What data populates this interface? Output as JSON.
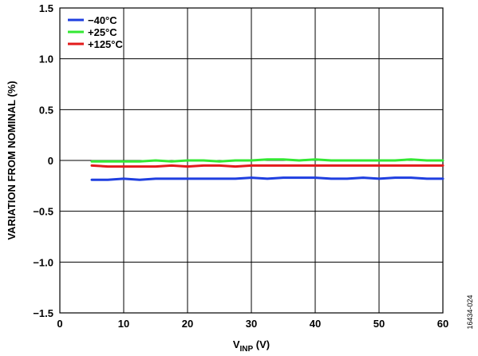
{
  "figure_id": "16434-024",
  "chart_data": {
    "type": "line",
    "title": "",
    "xlabel_main": "V",
    "xlabel_sub": "INP",
    "xlabel_suffix": " (V)",
    "ylabel": "VARIATION FROM NOMINAL (%)",
    "xlim": [
      0,
      60
    ],
    "ylim": [
      -1.5,
      1.5
    ],
    "x_ticks": [
      0,
      10,
      20,
      30,
      40,
      50,
      60
    ],
    "x_tick_labels": [
      "0",
      "10",
      "20",
      "30",
      "40",
      "50",
      "60"
    ],
    "y_ticks": [
      -1.5,
      -1.0,
      -0.5,
      0,
      0.5,
      1.0,
      1.5
    ],
    "y_tick_labels": [
      "−1.5",
      "−1.0",
      "−0.5",
      "0",
      "0.5",
      "1.0",
      "1.5"
    ],
    "grid": true,
    "legend_position": "top-left",
    "series": [
      {
        "name": "−40°C",
        "color": "#1f3fe0",
        "x": [
          5,
          7.5,
          10,
          12.5,
          15,
          17.5,
          20,
          22.5,
          25,
          27.5,
          30,
          32.5,
          35,
          37.5,
          40,
          42.5,
          45,
          47.5,
          50,
          52.5,
          55,
          57.5,
          60
        ],
        "y": [
          -0.19,
          -0.19,
          -0.18,
          -0.19,
          -0.18,
          -0.18,
          -0.18,
          -0.18,
          -0.18,
          -0.18,
          -0.17,
          -0.18,
          -0.17,
          -0.17,
          -0.17,
          -0.18,
          -0.18,
          -0.17,
          -0.18,
          -0.17,
          -0.17,
          -0.18,
          -0.18
        ]
      },
      {
        "name": "+25°C",
        "color": "#33e833",
        "x": [
          5,
          7.5,
          10,
          12.5,
          15,
          17.5,
          20,
          22.5,
          25,
          27.5,
          30,
          32.5,
          35,
          37.5,
          40,
          42.5,
          45,
          47.5,
          50,
          52.5,
          55,
          57.5,
          60
        ],
        "y": [
          -0.01,
          -0.01,
          -0.01,
          -0.01,
          0.0,
          -0.01,
          0.0,
          0.0,
          -0.01,
          0.0,
          0.0,
          0.01,
          0.01,
          0.0,
          0.01,
          0.0,
          0.0,
          0.0,
          0.0,
          0.0,
          0.01,
          0.0,
          0.0
        ]
      },
      {
        "name": "+125°C",
        "color": "#e31b1b",
        "x": [
          5,
          7.5,
          10,
          12.5,
          15,
          17.5,
          20,
          22.5,
          25,
          27.5,
          30,
          32.5,
          35,
          37.5,
          40,
          42.5,
          45,
          47.5,
          50,
          52.5,
          55,
          57.5,
          60
        ],
        "y": [
          -0.05,
          -0.06,
          -0.06,
          -0.06,
          -0.06,
          -0.05,
          -0.06,
          -0.05,
          -0.05,
          -0.06,
          -0.05,
          -0.05,
          -0.05,
          -0.05,
          -0.05,
          -0.05,
          -0.05,
          -0.05,
          -0.05,
          -0.05,
          -0.05,
          -0.05,
          -0.05
        ]
      }
    ]
  }
}
